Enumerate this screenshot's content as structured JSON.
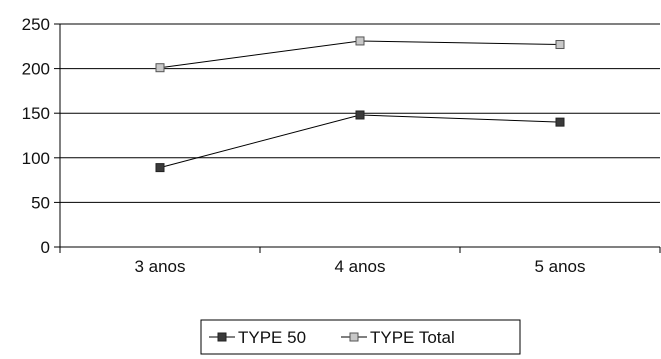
{
  "chart_data": {
    "type": "line",
    "categories": [
      "3 anos",
      "4 anos",
      "5 anos"
    ],
    "series": [
      {
        "name": "TYPE 50",
        "values": [
          89,
          148,
          140
        ],
        "color": "#3a3a3a",
        "marker": "filled-square"
      },
      {
        "name": "TYPE Total",
        "values": [
          201,
          231,
          227
        ],
        "color": "#9a9a9a",
        "marker": "light-square"
      }
    ],
    "ylim": [
      0,
      250
    ],
    "yticks": [
      0,
      50,
      100,
      150,
      200,
      250
    ],
    "grid": true,
    "legend": "bottom",
    "title": "",
    "xlabel": "",
    "ylabel": ""
  }
}
